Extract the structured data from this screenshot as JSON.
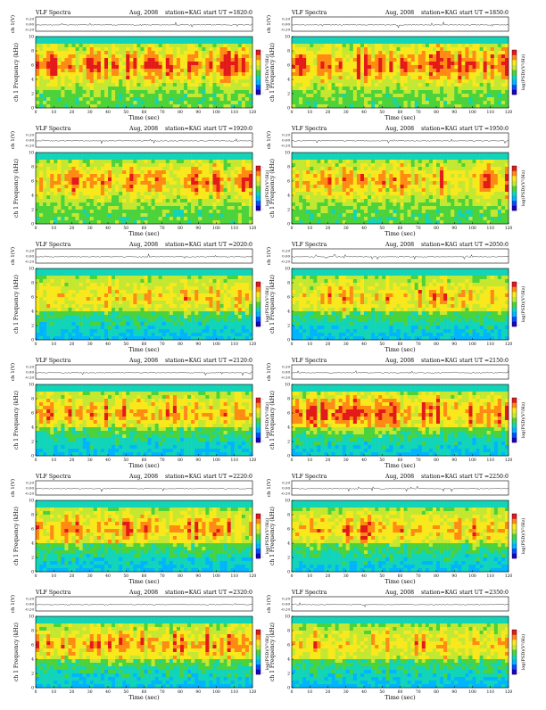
{
  "colors": {
    "background": "#ffffff",
    "colormap": [
      "#1a00c8",
      "#0050ff",
      "#00b4ff",
      "#12d4b8",
      "#4cd23a",
      "#c4e832",
      "#f8e81c",
      "#ff8a14",
      "#e41a1a"
    ]
  },
  "chart_data": [
    {
      "type": "heatmap",
      "header": {
        "left": "VLF Spectra",
        "date": "Aug, 2008",
        "station": "station=KAG",
        "start": "start  UT =1820:0"
      },
      "trace_label": "ch 1(V)",
      "trace_ticks": [
        "0.20",
        "0.00",
        "-0.20"
      ],
      "ylabel": "ch 1  Frequency (kHz)",
      "yticks": [
        "0",
        "2",
        "4",
        "6",
        "8",
        "10"
      ],
      "xlabel": "Time (sec)",
      "xticks": [
        "0",
        "10",
        "20",
        "30",
        "40",
        "50",
        "60",
        "70",
        "80",
        "90",
        "100",
        "110",
        "120"
      ],
      "xlim": [
        0,
        120
      ],
      "ylim": [
        0,
        10
      ],
      "colorbar_label": "log(PSD)(V²/Hz)",
      "colorbar_ticks": [
        "-",
        "-"
      ],
      "activity": "high",
      "quiet_low": false
    },
    {
      "type": "heatmap",
      "header": {
        "left": "VLF Spectra",
        "date": "Aug, 2008",
        "station": "station=KAG",
        "start": "start  UT =1850:0"
      },
      "trace_label": "ch 1(V)",
      "trace_ticks": [
        "0.20",
        "0.00",
        "-0.20"
      ],
      "ylabel": "ch 1  Frequency (kHz)",
      "yticks": [
        "0",
        "2",
        "4",
        "6",
        "8",
        "10"
      ],
      "xlabel": "Time (sec)",
      "xticks": [
        "0",
        "10",
        "20",
        "30",
        "40",
        "50",
        "60",
        "70",
        "80",
        "90",
        "100",
        "110",
        "120"
      ],
      "xlim": [
        0,
        120
      ],
      "ylim": [
        0,
        10
      ],
      "colorbar_label": "log(PSD)(V²/Hz)",
      "colorbar_ticks": [
        "-",
        "-"
      ],
      "activity": "high",
      "quiet_low": false
    },
    {
      "type": "heatmap",
      "header": {
        "left": "VLF Spectra",
        "date": "Aug, 2008",
        "station": "station=KAG",
        "start": "start  UT =1920:0"
      },
      "trace_label": "ch 1(V)",
      "trace_ticks": [
        "0.20",
        "0.00",
        "-0.20"
      ],
      "ylabel": "ch 1  Frequency (kHz)",
      "yticks": [
        "0",
        "2",
        "4",
        "6",
        "8",
        "10"
      ],
      "xlabel": "Time (sec)",
      "xticks": [
        "0",
        "10",
        "20",
        "30",
        "40",
        "50",
        "60",
        "70",
        "80",
        "90",
        "100",
        "110",
        "120"
      ],
      "xlim": [
        0,
        120
      ],
      "ylim": [
        0,
        10
      ],
      "colorbar_label": "log(PSD)(V²/Hz)",
      "colorbar_ticks": [
        "-",
        "-"
      ],
      "activity": "medium",
      "quiet_low": false
    },
    {
      "type": "heatmap",
      "header": {
        "left": "VLF Spectra",
        "date": "Aug, 2008",
        "station": "station=KAG",
        "start": "start  UT =1950:0"
      },
      "trace_label": "ch 1(V)",
      "trace_ticks": [
        "0.20",
        "0.00",
        "-0.20"
      ],
      "ylabel": "ch 1  Frequency (kHz)",
      "yticks": [
        "0",
        "2",
        "4",
        "6",
        "8",
        "10"
      ],
      "xlabel": "Time (sec)",
      "xticks": [
        "0",
        "10",
        "20",
        "30",
        "40",
        "50",
        "60",
        "70",
        "80",
        "90",
        "100",
        "110",
        "120"
      ],
      "xlim": [
        0,
        120
      ],
      "ylim": [
        0,
        10
      ],
      "colorbar_label": "log(PSD)(V²/Hz)",
      "colorbar_ticks": [
        "-",
        "-"
      ],
      "activity": "medium",
      "quiet_low": false
    },
    {
      "type": "heatmap",
      "header": {
        "left": "VLF Spectra",
        "date": "Aug, 2008",
        "station": "station=KAG",
        "start": "start  UT =2020:0"
      },
      "trace_label": "ch 1(V)",
      "trace_ticks": [
        "0.20",
        "0.00",
        "-0.20"
      ],
      "ylabel": "ch 1  Frequency (kHz)",
      "yticks": [
        "0",
        "2",
        "4",
        "6",
        "8",
        "10"
      ],
      "xlabel": "Time (sec)",
      "xticks": [
        "0",
        "10",
        "20",
        "30",
        "40",
        "50",
        "60",
        "70",
        "80",
        "90",
        "100",
        "110",
        "120"
      ],
      "xlim": [
        0,
        120
      ],
      "ylim": [
        0,
        10
      ],
      "colorbar_label": "log(PSD)(V²/Hz)",
      "colorbar_ticks": [
        "-",
        "-"
      ],
      "activity": "low",
      "quiet_low": true
    },
    {
      "type": "heatmap",
      "header": {
        "left": "VLF Spectra",
        "date": "Aug, 2008",
        "station": "station=KAG",
        "start": "start  UT =2050:0"
      },
      "trace_label": "ch 1(V)",
      "trace_ticks": [
        "0.20",
        "0.00",
        "-0.20"
      ],
      "ylabel": "ch 1  Frequency (kHz)",
      "yticks": [
        "0",
        "2",
        "4",
        "6",
        "8",
        "10"
      ],
      "xlabel": "Time (sec)",
      "xticks": [
        "0",
        "10",
        "20",
        "30",
        "40",
        "50",
        "60",
        "70",
        "80",
        "90",
        "100",
        "110",
        "120"
      ],
      "xlim": [
        0,
        120
      ],
      "ylim": [
        0,
        10
      ],
      "colorbar_label": "log(PSD)(V²/Hz)",
      "colorbar_ticks": [
        "-",
        "-"
      ],
      "activity": "low",
      "quiet_low": true
    },
    {
      "type": "heatmap",
      "header": {
        "left": "VLF Spectra",
        "date": "Aug, 2008",
        "station": "station=KAG",
        "start": "start  UT =2120:0"
      },
      "trace_label": "ch 1(V)",
      "trace_ticks": [
        "0.20",
        "0.00",
        "-0.20"
      ],
      "ylabel": "ch 1  Frequency (kHz)",
      "yticks": [
        "0",
        "2",
        "4",
        "6",
        "8",
        "10"
      ],
      "xlabel": "Time (sec)",
      "xticks": [
        "0",
        "10",
        "20",
        "30",
        "40",
        "50",
        "60",
        "70",
        "80",
        "90",
        "100",
        "110",
        "120"
      ],
      "xlim": [
        0,
        120
      ],
      "ylim": [
        0,
        10
      ],
      "colorbar_label": "log(PSD)(V²/Hz)",
      "colorbar_ticks": [
        "-",
        "-"
      ],
      "activity": "medium",
      "quiet_low": true
    },
    {
      "type": "heatmap",
      "header": {
        "left": "VLF Spectra",
        "date": "Aug, 2008",
        "station": "station=KAG",
        "start": "start  UT =2150:0"
      },
      "trace_label": "ch 1(V)",
      "trace_ticks": [
        "0.20",
        "0.00",
        "-0.20"
      ],
      "ylabel": "ch 1  Frequency (kHz)",
      "yticks": [
        "0",
        "2",
        "4",
        "6",
        "8",
        "10"
      ],
      "xlabel": "Time (sec)",
      "xticks": [
        "0",
        "10",
        "20",
        "30",
        "40",
        "50",
        "60",
        "70",
        "80",
        "90",
        "100",
        "110",
        "120"
      ],
      "xlim": [
        0,
        120
      ],
      "ylim": [
        0,
        10
      ],
      "colorbar_label": "log(PSD)(V²/Hz)",
      "colorbar_ticks": [
        "-",
        "-"
      ],
      "activity": "high",
      "quiet_low": true
    },
    {
      "type": "heatmap",
      "header": {
        "left": "VLF Spectra",
        "date": "Aug, 2008",
        "station": "station=KAG",
        "start": "start  UT =2220:0"
      },
      "trace_label": "ch 1(V)",
      "trace_ticks": [
        "0.20",
        "0.00",
        "-0.20"
      ],
      "ylabel": "ch 1  Frequency (kHz)",
      "yticks": [
        "0",
        "2",
        "4",
        "6",
        "8",
        "10"
      ],
      "xlabel": "Time (sec)",
      "xticks": [
        "0",
        "10",
        "20",
        "30",
        "40",
        "50",
        "60",
        "70",
        "80",
        "90",
        "100",
        "110",
        "120"
      ],
      "xlim": [
        0,
        120
      ],
      "ylim": [
        0,
        10
      ],
      "colorbar_label": "log(PSD)(V²/Hz)",
      "colorbar_ticks": [
        "-",
        "-"
      ],
      "activity": "medium",
      "quiet_low": true
    },
    {
      "type": "heatmap",
      "header": {
        "left": "VLF Spectra",
        "date": "Aug, 2008",
        "station": "station=KAG",
        "start": "start  UT =2250:0"
      },
      "trace_label": "ch 1(V)",
      "trace_ticks": [
        "0.20",
        "0.00",
        "-0.20"
      ],
      "ylabel": "ch 1  Frequency (kHz)",
      "yticks": [
        "0",
        "2",
        "4",
        "6",
        "8",
        "10"
      ],
      "xlabel": "Time (sec)",
      "xticks": [
        "0",
        "10",
        "20",
        "30",
        "40",
        "50",
        "60",
        "70",
        "80",
        "90",
        "100",
        "110",
        "120"
      ],
      "xlim": [
        0,
        120
      ],
      "ylim": [
        0,
        10
      ],
      "colorbar_label": "log(PSD)(V²/Hz)",
      "colorbar_ticks": [
        "-",
        "-"
      ],
      "activity": "medium",
      "quiet_low": true
    },
    {
      "type": "heatmap",
      "header": {
        "left": "VLF Spectra",
        "date": "Aug, 2008",
        "station": "station=KAG",
        "start": "start  UT =2320:0"
      },
      "trace_label": "ch 1(V)",
      "trace_ticks": [
        "0.20",
        "0.00",
        "-0.20"
      ],
      "ylabel": "ch 1  Frequency (kHz)",
      "yticks": [
        "0",
        "2",
        "4",
        "6",
        "8",
        "10"
      ],
      "xlabel": "Time (sec)",
      "xticks": [
        "0",
        "10",
        "20",
        "30",
        "40",
        "50",
        "60",
        "70",
        "80",
        "90",
        "100",
        "110",
        "120"
      ],
      "xlim": [
        0,
        120
      ],
      "ylim": [
        0,
        10
      ],
      "colorbar_label": "log(PSD)(V²/Hz)",
      "colorbar_ticks": [
        "-",
        "-"
      ],
      "activity": "medium",
      "quiet_low": true
    },
    {
      "type": "heatmap",
      "header": {
        "left": "VLF Spectra",
        "date": "Aug, 2008",
        "station": "station=KAG",
        "start": "start  UT =2350:0"
      },
      "trace_label": "ch 1(V)",
      "trace_ticks": [
        "0.20",
        "0.00",
        "-0.20"
      ],
      "ylabel": "ch 1  Frequency (kHz)",
      "yticks": [
        "0",
        "2",
        "4",
        "6",
        "8",
        "10"
      ],
      "xlabel": "Time (sec)",
      "xticks": [
        "0",
        "10",
        "20",
        "30",
        "40",
        "50",
        "60",
        "70",
        "80",
        "90",
        "100",
        "110",
        "120"
      ],
      "xlim": [
        0,
        120
      ],
      "ylim": [
        0,
        10
      ],
      "colorbar_label": "log(PSD)(V²/Hz)",
      "colorbar_ticks": [
        "-",
        "-"
      ],
      "activity": "low",
      "quiet_low": true
    }
  ]
}
